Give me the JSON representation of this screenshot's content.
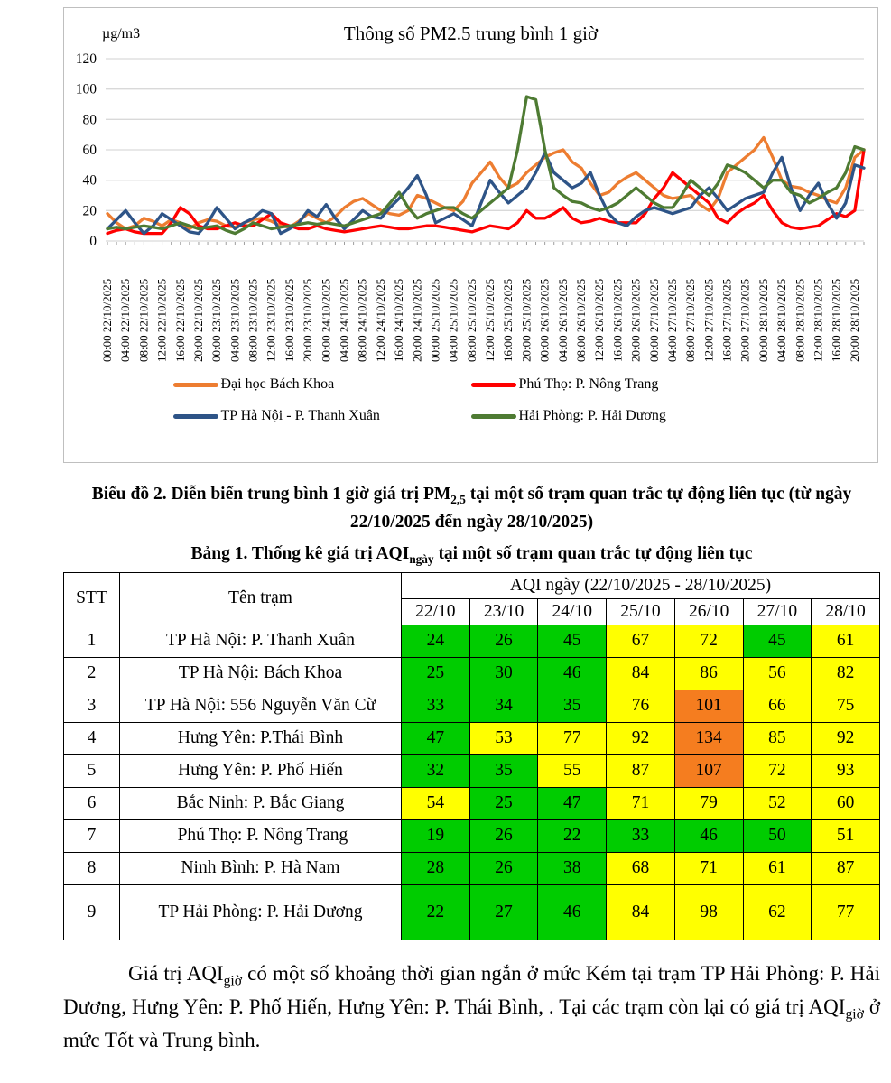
{
  "chart_data": {
    "type": "line",
    "title": "Thông số PM2.5 trung bình 1 giờ",
    "ylabel": "µg/m3",
    "xlabel": "",
    "ylim": [
      0,
      120
    ],
    "yticks": [
      0,
      20,
      40,
      60,
      80,
      100,
      120
    ],
    "grid": true,
    "legend_position": "bottom",
    "x_step_hours": 2,
    "x_tick_labels": [
      "00:00 22/10/2025",
      "04:00 22/10/2025",
      "08:00 22/10/2025",
      "12:00 22/10/2025",
      "16:00 22/10/2025",
      "20:00 22/10/2025",
      "00:00 23/10/2025",
      "04:00 23/10/2025",
      "08:00 23/10/2025",
      "12:00 23/10/2025",
      "16:00 23/10/2025",
      "20:00 23/10/2025",
      "00:00 24/10/2025",
      "04:00 24/10/2025",
      "08:00 24/10/2025",
      "12:00 24/10/2025",
      "16:00 24/10/2025",
      "20:00 24/10/2025",
      "00:00 25/10/2025",
      "04:00 25/10/2025",
      "08:00 25/10/2025",
      "12:00 25/10/2025",
      "16:00 25/10/2025",
      "20:00 25/10/2025",
      "00:00 26/10/2025",
      "04:00 26/10/2025",
      "08:00 26/10/2025",
      "12:00 26/10/2025",
      "16:00 26/10/2025",
      "20:00 26/10/2025",
      "00:00 27/10/2025",
      "04:00 27/10/2025",
      "08:00 27/10/2025",
      "12:00 27/10/2025",
      "16:00 27/10/2025",
      "20:00 27/10/2025",
      "00:00 28/10/2025",
      "04:00 28/10/2025",
      "08:00 28/10/2025",
      "12:00 28/10/2025",
      "16:00 28/10/2025",
      "20:00 28/10/2025"
    ],
    "series": [
      {
        "name": "Đại học Bách Khoa",
        "color": "#ED7D31",
        "values": [
          18,
          12,
          8,
          10,
          15,
          13,
          10,
          14,
          12,
          8,
          12,
          14,
          13,
          10,
          9,
          12,
          14,
          15,
          13,
          10,
          9,
          13,
          18,
          15,
          12,
          16,
          22,
          26,
          28,
          24,
          20,
          18,
          17,
          20,
          30,
          28,
          25,
          22,
          20,
          26,
          38,
          45,
          52,
          42,
          35,
          38,
          45,
          50,
          55,
          58,
          60,
          52,
          48,
          38,
          30,
          32,
          38,
          42,
          45,
          40,
          35,
          30,
          28,
          29,
          30,
          24,
          20,
          28,
          45,
          50,
          55,
          60,
          68,
          55,
          40,
          36,
          35,
          32,
          30,
          27,
          25,
          35,
          55,
          60
        ]
      },
      {
        "name": "Phú Thọ: P. Nông Trang",
        "color": "#FF0000",
        "values": [
          5,
          7,
          8,
          6,
          5,
          5,
          5,
          12,
          22,
          18,
          10,
          8,
          8,
          10,
          12,
          10,
          10,
          14,
          18,
          12,
          10,
          8,
          8,
          10,
          8,
          7,
          6,
          7,
          8,
          9,
          10,
          9,
          8,
          8,
          9,
          10,
          10,
          9,
          8,
          7,
          6,
          8,
          10,
          9,
          8,
          12,
          20,
          15,
          15,
          18,
          22,
          15,
          12,
          13,
          15,
          13,
          12,
          12,
          12,
          18,
          28,
          35,
          45,
          40,
          35,
          30,
          25,
          15,
          12,
          18,
          22,
          25,
          30,
          20,
          12,
          9,
          8,
          9,
          10,
          14,
          18,
          16,
          20,
          60
        ]
      },
      {
        "name": "TP Hà Nội - P. Thanh Xuân",
        "color": "#2E5487",
        "values": [
          8,
          14,
          20,
          12,
          5,
          10,
          18,
          14,
          10,
          6,
          5,
          12,
          22,
          15,
          8,
          12,
          15,
          20,
          18,
          5,
          8,
          12,
          20,
          16,
          24,
          15,
          8,
          14,
          20,
          16,
          15,
          22,
          28,
          35,
          43,
          30,
          12,
          15,
          18,
          14,
          10,
          25,
          40,
          32,
          25,
          30,
          35,
          45,
          58,
          45,
          40,
          35,
          38,
          45,
          30,
          18,
          12,
          10,
          16,
          20,
          22,
          20,
          18,
          20,
          22,
          30,
          35,
          28,
          20,
          24,
          28,
          30,
          32,
          45,
          55,
          35,
          20,
          30,
          38,
          25,
          15,
          25,
          50,
          48
        ]
      },
      {
        "name": "Hải Phòng: P. Hải Dương",
        "color": "#4E7B33",
        "values": [
          8,
          9,
          8,
          9,
          10,
          9,
          8,
          10,
          12,
          10,
          8,
          9,
          10,
          7,
          5,
          8,
          12,
          10,
          8,
          9,
          10,
          11,
          12,
          11,
          12,
          11,
          10,
          12,
          14,
          16,
          18,
          25,
          32,
          22,
          15,
          18,
          20,
          22,
          22,
          18,
          15,
          20,
          25,
          30,
          35,
          60,
          95,
          93,
          60,
          35,
          30,
          26,
          25,
          22,
          20,
          22,
          25,
          30,
          35,
          30,
          25,
          22,
          22,
          30,
          40,
          35,
          30,
          38,
          50,
          48,
          45,
          40,
          35,
          40,
          40,
          32,
          30,
          25,
          28,
          32,
          35,
          45,
          62,
          60
        ]
      }
    ]
  },
  "captions": {
    "chart": {
      "part1": "Biểu đồ 2. Diễn biến trung bình 1 giờ giá trị PM",
      "sub": "2,5",
      "part2": " tại một số trạm quan trắc tự động liên tục (từ ngày 22/10/2025 đến ngày 28/10/2025)"
    },
    "table": {
      "part1": "Bảng 1. Thống kê giá trị AQI",
      "sub": "ngày",
      "part2": " tại một số trạm quan trắc tự động liên tục"
    }
  },
  "table": {
    "header": {
      "stt": "STT",
      "station": "Tên trạm",
      "aqi_group": "AQI ngày (22/10/2025 - 28/10/2025)",
      "dates": [
        "22/10",
        "23/10",
        "24/10",
        "25/10",
        "26/10",
        "27/10",
        "28/10"
      ]
    },
    "rows": [
      {
        "stt": "1",
        "station": "TP Hà Nội: P. Thanh Xuân",
        "values": [
          24,
          26,
          45,
          67,
          72,
          45,
          61
        ],
        "colors": [
          "green",
          "green",
          "green",
          "yellow",
          "yellow",
          "green",
          "yellow"
        ]
      },
      {
        "stt": "2",
        "station": "TP Hà Nội: Bách Khoa",
        "values": [
          25,
          30,
          46,
          84,
          86,
          56,
          82
        ],
        "colors": [
          "green",
          "green",
          "green",
          "yellow",
          "yellow",
          "yellow",
          "yellow"
        ]
      },
      {
        "stt": "3",
        "station": "TP Hà Nội: 556 Nguyễn Văn Cừ",
        "values": [
          33,
          34,
          35,
          76,
          101,
          66,
          75
        ],
        "colors": [
          "green",
          "green",
          "green",
          "yellow",
          "orange",
          "yellow",
          "yellow"
        ]
      },
      {
        "stt": "4",
        "station": "Hưng Yên: P.Thái Bình",
        "values": [
          47,
          53,
          77,
          92,
          134,
          85,
          92
        ],
        "colors": [
          "green",
          "yellow",
          "yellow",
          "yellow",
          "orange",
          "yellow",
          "yellow"
        ]
      },
      {
        "stt": "5",
        "station": "Hưng Yên: P. Phố Hiến",
        "values": [
          32,
          35,
          55,
          87,
          107,
          72,
          93
        ],
        "colors": [
          "green",
          "green",
          "yellow",
          "yellow",
          "orange",
          "yellow",
          "yellow"
        ]
      },
      {
        "stt": "6",
        "station": "Bắc Ninh: P. Bắc Giang",
        "values": [
          54,
          25,
          47,
          71,
          79,
          52,
          60
        ],
        "colors": [
          "yellow",
          "green",
          "green",
          "yellow",
          "yellow",
          "yellow",
          "yellow"
        ]
      },
      {
        "stt": "7",
        "station": " Phú Thọ: P. Nông Trang",
        "values": [
          19,
          26,
          22,
          33,
          46,
          50,
          51
        ],
        "colors": [
          "green",
          "green",
          "green",
          "green",
          "green",
          "green",
          "yellow"
        ]
      },
      {
        "stt": "8",
        "station": "Ninh Bình: P. Hà Nam",
        "values": [
          28,
          26,
          38,
          68,
          71,
          61,
          87
        ],
        "colors": [
          "green",
          "green",
          "green",
          "yellow",
          "yellow",
          "yellow",
          "yellow"
        ]
      },
      {
        "stt": "9",
        "station": "TP Hải Phòng: P. Hải Dương",
        "values": [
          22,
          27,
          46,
          84,
          98,
          62,
          77
        ],
        "colors": [
          "green",
          "green",
          "green",
          "yellow",
          "yellow",
          "yellow",
          "yellow"
        ]
      }
    ]
  },
  "aqi_colors": {
    "green": "#00CC00",
    "yellow": "#FFFF00",
    "orange": "#F57D1F"
  },
  "paragraph": {
    "part1": "Giá trị AQI",
    "sub1": "giờ",
    "part2": " có một số khoảng thời gian ngắn ở mức Kém tại trạm TP Hải Phòng: P. Hải Dương, Hưng Yên: P. Phố Hiến, Hưng Yên: P. Thái Bình, . Tại các trạm còn lại có giá trị AQI",
    "sub2": "giờ",
    "part3": " ở mức Tốt và Trung bình."
  }
}
